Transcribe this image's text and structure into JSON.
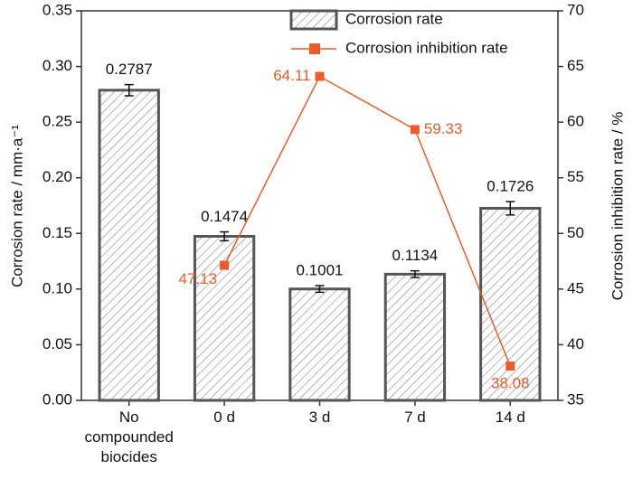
{
  "chart_data": {
    "type": "bar",
    "categories": [
      "No compounded biocides",
      "0 d",
      "3 d",
      "7 d",
      "14 d"
    ],
    "series": [
      {
        "name": "Corrosion rate",
        "type": "bar",
        "color": "#555555",
        "values": [
          0.2787,
          0.1474,
          0.1001,
          0.1134,
          0.1726
        ],
        "errors": [
          0.005,
          0.004,
          0.003,
          0.003,
          0.006
        ]
      },
      {
        "name": "Corrosion inhibition rate",
        "type": "line",
        "axis": "y2",
        "color": "#ec5b2a",
        "values": [
          null,
          47.13,
          64.11,
          59.33,
          38.08
        ]
      }
    ],
    "ylabel": "Corrosion rate / mm·a⁻¹",
    "y2label": "Corrosion inhibition rate / %",
    "ylim": [
      0,
      0.35
    ],
    "yticks": [
      {
        "value": 0,
        "label": "0.00"
      },
      {
        "value": 0.05,
        "label": "0.05"
      },
      {
        "value": 0.1,
        "label": "0.10"
      },
      {
        "value": 0.15,
        "label": "0.15"
      },
      {
        "value": 0.2,
        "label": "0.20"
      },
      {
        "value": 0.25,
        "label": "0.25"
      },
      {
        "value": 0.3,
        "label": "0.30"
      },
      {
        "value": 0.35,
        "label": "0.35"
      }
    ],
    "y2lim": [
      35,
      70
    ],
    "y2ticks": [
      35,
      40,
      45,
      50,
      55,
      60,
      65,
      70
    ],
    "legend": "top"
  }
}
